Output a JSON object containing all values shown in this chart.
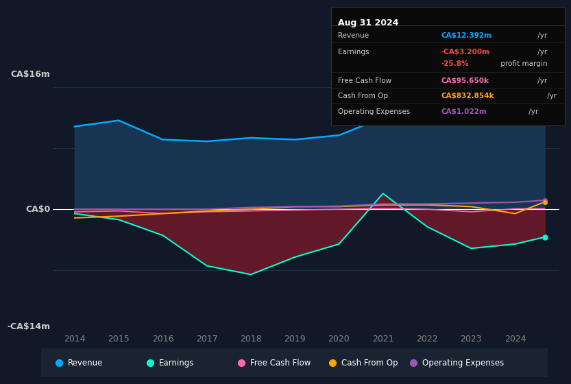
{
  "background_color": "#111827",
  "plot_bg_color": "#111827",
  "ylabel_top": "CA$16m",
  "ylabel_bottom": "-CA$14m",
  "y_zero_label": "CA$0",
  "years": [
    2014,
    2015,
    2016,
    2017,
    2018,
    2019,
    2020,
    2021,
    2022,
    2023,
    2024,
    2024.67
  ],
  "revenue": [
    9.5,
    10.2,
    8.0,
    7.8,
    8.2,
    8.0,
    8.5,
    10.5,
    14.5,
    15.5,
    14.8,
    12.4
  ],
  "earnings": [
    -0.5,
    -1.2,
    -3.0,
    -6.5,
    -7.5,
    -5.5,
    -4.0,
    1.8,
    -2.0,
    -4.5,
    -4.0,
    -3.2
  ],
  "free_cash_flow": [
    -0.3,
    -0.2,
    -0.5,
    -0.3,
    -0.2,
    -0.1,
    0.0,
    0.1,
    0.0,
    -0.3,
    0.05,
    0.096
  ],
  "cash_from_op": [
    -1.0,
    -0.8,
    -0.5,
    -0.2,
    0.0,
    0.3,
    0.3,
    0.5,
    0.5,
    0.3,
    -0.5,
    0.833
  ],
  "operating_expenses": [
    0.0,
    0.0,
    0.0,
    0.0,
    0.2,
    0.3,
    0.35,
    0.6,
    0.6,
    0.7,
    0.8,
    1.022
  ],
  "revenue_color": "#00aaff",
  "earnings_color": "#00ffcc",
  "earnings_fill_color": "#6b1a2a",
  "revenue_fill_color": "#1a3a5c",
  "fcf_color": "#ff69b4",
  "cash_op_color": "#ffa500",
  "op_exp_color": "#9b59b6",
  "zero_line_color": "#ffffff",
  "grid_color": "#2a3a4a",
  "tick_color": "#888888",
  "text_color": "#cccccc",
  "info_box": {
    "bg_color": "#0a0a0a",
    "border_color": "#333333",
    "title": "Aug 31 2024",
    "rows": [
      {
        "label": "Revenue",
        "value": "CA$12.392m",
        "unit": " /yr",
        "value_color": "#00aaff"
      },
      {
        "label": "Earnings",
        "value": "-CA$3.200m",
        "unit": " /yr",
        "value_color": "#ff4444"
      },
      {
        "label": "",
        "value": "-25.8%",
        "unit": " profit margin",
        "value_color": "#ff4444"
      },
      {
        "label": "Free Cash Flow",
        "value": "CA$95.650k",
        "unit": " /yr",
        "value_color": "#ff69b4"
      },
      {
        "label": "Cash From Op",
        "value": "CA$832.854k",
        "unit": " /yr",
        "value_color": "#ffa500"
      },
      {
        "label": "Operating Expenses",
        "value": "CA$1.022m",
        "unit": " /yr",
        "value_color": "#9b59b6"
      }
    ]
  },
  "legend_items": [
    {
      "label": "Revenue",
      "color": "#00aaff"
    },
    {
      "label": "Earnings",
      "color": "#00ffcc"
    },
    {
      "label": "Free Cash Flow",
      "color": "#ff69b4"
    },
    {
      "label": "Cash From Op",
      "color": "#ffa500"
    },
    {
      "label": "Operating Expenses",
      "color": "#9b59b6"
    }
  ]
}
